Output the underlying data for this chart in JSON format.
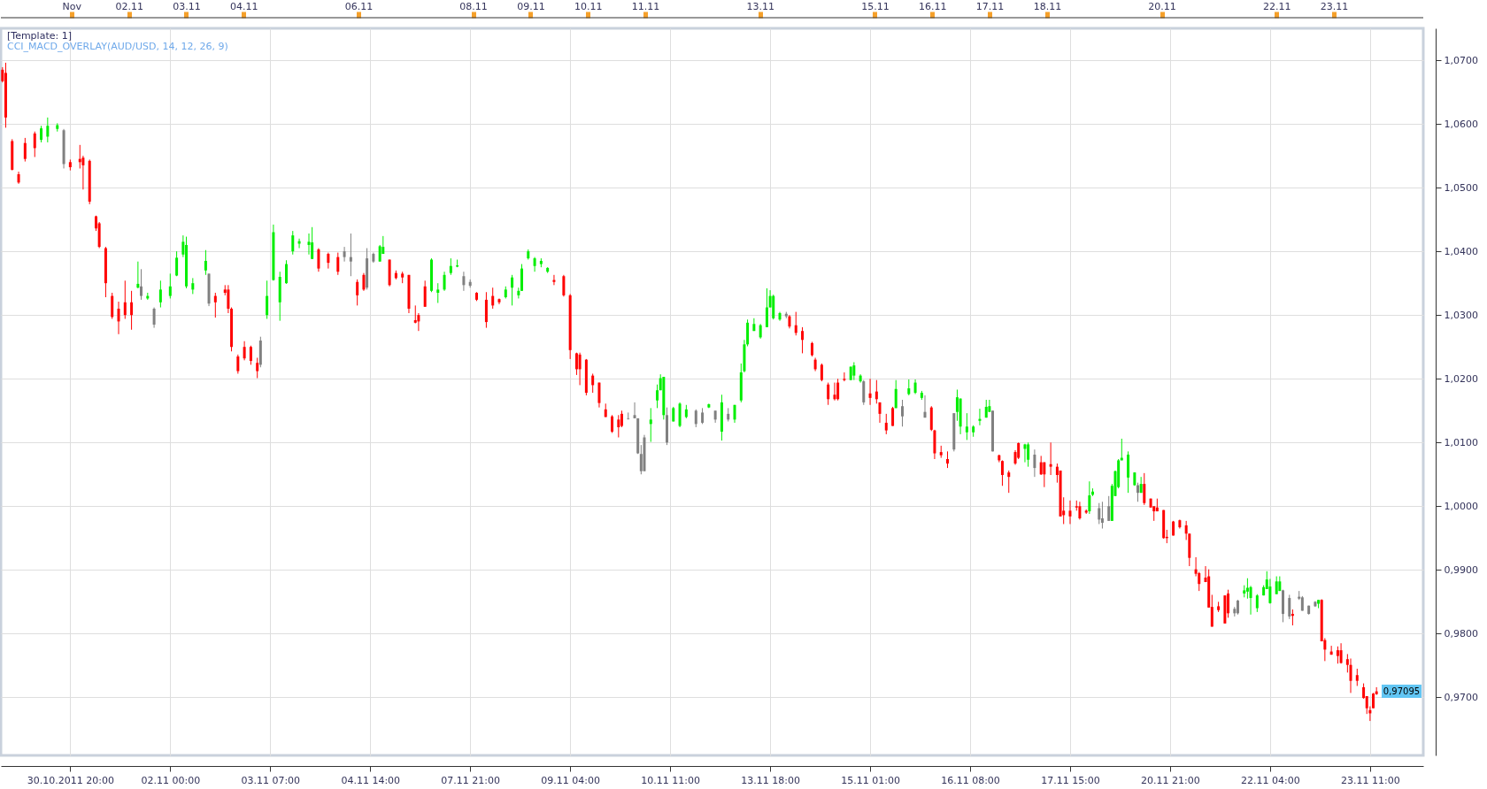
{
  "chart_data": {
    "type": "candlestick",
    "annotations": [
      "[Template: 1]",
      "CCI_MACD_OVERLAY(AUD/USD, 14, 12, 26, 9)",
      "0,97095"
    ],
    "categories": [
      null,
      null,
      null,
      null,
      null,
      null,
      null,
      null,
      null,
      null,
      null,
      null,
      null,
      null,
      null,
      null,
      null,
      null,
      null,
      null,
      null,
      "30.10.2011 20:00",
      null,
      null,
      null,
      null,
      null,
      null,
      null,
      null,
      null,
      null,
      null,
      null,
      null,
      null,
      null,
      null,
      null,
      null,
      null,
      null,
      null,
      null,
      null,
      null,
      null,
      null,
      null,
      null,
      null,
      null,
      "02.11 00:00",
      null,
      null,
      null,
      null,
      null,
      null,
      null,
      null,
      null,
      null,
      null,
      null,
      null,
      null,
      null,
      null,
      null,
      null,
      null,
      null,
      null,
      null,
      null,
      null,
      null,
      null,
      null,
      null,
      null,
      null,
      "03.11 07:00",
      null,
      null,
      null,
      null,
      null,
      null,
      null,
      null,
      null,
      null,
      null,
      null,
      null,
      null,
      null,
      null,
      null,
      null,
      null,
      null,
      null,
      null,
      null,
      null,
      null,
      null,
      null,
      null,
      null,
      null,
      "04.11 14:00",
      null,
      null,
      null,
      null,
      null,
      null,
      null,
      null,
      null,
      null,
      null,
      null,
      null,
      null,
      null,
      null,
      null,
      null,
      null,
      null,
      null,
      null,
      null,
      null,
      null,
      null,
      null,
      null,
      null,
      null,
      "07.11 21:00",
      null,
      null,
      null,
      null,
      null,
      null,
      null,
      null,
      null,
      null,
      null,
      null,
      null,
      null,
      null,
      null,
      null,
      null,
      null,
      null,
      null,
      null,
      null,
      null,
      null,
      null,
      null,
      null,
      null,
      null,
      "09.11 04:00",
      null,
      null,
      null,
      null,
      null,
      null,
      null,
      null,
      null,
      null,
      null,
      null,
      null,
      null,
      null,
      null,
      null,
      null,
      null,
      null,
      null,
      null,
      null,
      null,
      null,
      null,
      null,
      null,
      null,
      null,
      "10.11 11:00",
      null,
      null,
      null,
      null,
      null,
      null,
      null,
      null,
      null,
      null,
      null,
      null,
      null,
      null,
      null,
      null,
      null,
      null,
      null,
      null,
      null,
      null,
      null,
      null,
      null,
      null,
      null,
      null,
      null,
      null,
      "13.11 18:00",
      null,
      null,
      null,
      null,
      null,
      null,
      null,
      null,
      null,
      null,
      null,
      null,
      null,
      null,
      null,
      null,
      null,
      null,
      null,
      null,
      null,
      null,
      null,
      null,
      null,
      null,
      null,
      null,
      null,
      null,
      "15.11 01:00",
      null,
      null,
      null,
      null,
      null,
      null,
      null,
      null,
      null,
      null,
      null,
      null,
      null,
      null,
      null,
      null,
      null,
      null,
      null,
      null,
      null,
      null,
      null,
      null,
      null,
      null,
      null,
      null,
      null,
      null,
      "16.11 08:00",
      null,
      null,
      null,
      null,
      null,
      null,
      null,
      null,
      null,
      null,
      null,
      null,
      null,
      null,
      null,
      null,
      null,
      null,
      null,
      null,
      null,
      null,
      null,
      null,
      null,
      null,
      null,
      null,
      null,
      null,
      "17.11 15:00",
      null,
      null,
      null,
      null,
      null,
      null,
      null,
      null,
      null,
      null,
      null,
      null,
      null,
      null,
      null,
      null,
      null,
      null,
      null,
      null,
      null,
      null,
      null,
      null,
      null,
      null,
      null,
      null,
      null,
      null,
      "20.11 21:00",
      null,
      null,
      null,
      null,
      null,
      null,
      null,
      null,
      null,
      null,
      null,
      null,
      null,
      null,
      null,
      null,
      null,
      null,
      null,
      null,
      null,
      null,
      null,
      null,
      null,
      null,
      null,
      null,
      null,
      null,
      "22.11 04:00",
      null,
      null,
      null,
      null,
      null,
      null,
      null,
      null,
      null,
      null,
      null,
      null,
      null,
      null,
      null,
      null,
      null,
      null,
      null,
      null,
      null,
      null,
      null,
      null,
      null,
      null,
      null,
      null,
      null,
      null,
      "23.11 11:00",
      null,
      null,
      null,
      null,
      null,
      null,
      null,
      null,
      null,
      null,
      null,
      null,
      null,
      null,
      null,
      null
    ],
    "ohlc": [
      [
        1.0685,
        1.0689,
        1.0665,
        1.0667
      ],
      [
        1.068,
        1.0696,
        1.0594,
        1.061
      ],
      null,
      [
        1.0573,
        1.0576,
        1.0527,
        1.0528
      ],
      null,
      [
        1.0521,
        1.0525,
        1.0506,
        1.0508
      ],
      null,
      [
        1.057,
        1.0578,
        1.0541,
        1.0545
      ],
      null,
      null,
      [
        1.0585,
        1.0588,
        1.0548,
        1.0562
      ],
      null,
      [
        1.0575,
        1.0597,
        1.0571,
        1.0593
      ],
      null,
      [
        1.058,
        1.061,
        1.0571,
        1.0597
      ],
      null,
      null,
      [
        1.0592,
        1.0601,
        1.0588,
        1.0598
      ],
      null,
      [
        1.059,
        1.0592,
        1.053,
        1.0537
      ],
      null,
      [
        1.054,
        1.0544,
        1.0527,
        1.0532
      ],
      null,
      null,
      [
        1.0545,
        1.0567,
        1.053,
        1.054
      ],
      [
        1.0547,
        1.055,
        1.0497,
        1.0535
      ],
      null,
      [
        1.0542,
        1.0544,
        1.0474,
        1.0478
      ],
      null,
      [
        1.0455,
        1.0456,
        1.0432,
        1.0436
      ],
      [
        1.0444,
        1.0446,
        1.0405,
        1.0407
      ],
      null,
      [
        1.0405,
        1.0407,
        1.0328,
        1.035
      ],
      null,
      [
        1.033,
        1.0335,
        1.0294,
        1.0297
      ],
      null,
      [
        1.031,
        1.0321,
        1.027,
        1.029
      ],
      null,
      [
        1.032,
        1.0354,
        1.0294,
        1.03
      ],
      null,
      [
        1.032,
        1.0338,
        1.0277,
        1.03
      ],
      null,
      [
        1.0343,
        1.0384,
        1.0342,
        1.0349
      ],
      [
        1.0345,
        1.0372,
        1.0324,
        1.033
      ],
      null,
      [
        1.0326,
        1.0335,
        1.0324,
        1.033
      ],
      null,
      [
        1.031,
        1.0312,
        1.028,
        1.0285
      ],
      null,
      [
        1.032,
        1.0354,
        1.0312,
        1.034
      ],
      null,
      null,
      [
        1.033,
        1.0365,
        1.0326,
        1.0345
      ],
      null,
      [
        1.0362,
        1.04,
        1.0361,
        1.039
      ],
      null,
      [
        1.0395,
        1.0425,
        1.0391,
        1.0415
      ],
      [
        1.0345,
        1.0423,
        1.0342,
        1.041
      ],
      null,
      [
        1.034,
        1.0358,
        1.0333,
        1.035
      ],
      null,
      null,
      null,
      [
        1.037,
        1.0402,
        1.0363,
        1.0385
      ],
      [
        1.0365,
        1.0365,
        1.0314,
        1.0318
      ],
      null,
      [
        1.033,
        1.0335,
        1.0296,
        1.032
      ],
      null,
      null,
      [
        1.034,
        1.0347,
        1.0331,
        1.0335
      ],
      [
        1.034,
        1.0347,
        1.0303,
        1.031
      ],
      [
        1.031,
        1.0312,
        1.0243,
        1.025
      ],
      null,
      [
        1.0235,
        1.0238,
        1.0208,
        1.0212
      ],
      null,
      [
        1.025,
        1.0259,
        1.0229,
        1.0232
      ],
      null,
      [
        1.025,
        1.0252,
        1.0222,
        1.0228
      ],
      null,
      [
        1.0225,
        1.0233,
        1.0201,
        1.0212
      ],
      [
        1.026,
        1.0266,
        1.0218,
        1.0222
      ],
      null,
      [
        1.03,
        1.0354,
        1.0294,
        1.033
      ],
      null,
      [
        1.0355,
        1.0442,
        1.0354,
        1.043
      ],
      null,
      [
        1.032,
        1.0368,
        1.0291,
        1.036
      ],
      null,
      [
        1.035,
        1.0386,
        1.0349,
        1.038
      ],
      null,
      [
        1.04,
        1.0432,
        1.0395,
        1.0425
      ],
      null,
      [
        1.0412,
        1.042,
        1.0405,
        1.0416
      ],
      null,
      null,
      [
        1.041,
        1.0428,
        1.0395,
        1.0415
      ],
      [
        1.0388,
        1.0438,
        1.0388,
        1.0414
      ],
      null,
      [
        1.0403,
        1.0405,
        1.0368,
        1.0373
      ],
      null,
      null,
      [
        1.0396,
        1.0398,
        1.0373,
        1.0382
      ],
      null,
      null,
      [
        1.0391,
        1.0398,
        1.0363,
        1.0368
      ],
      null,
      [
        1.04,
        1.0407,
        1.0384,
        1.0391
      ],
      null,
      [
        1.0391,
        1.0428,
        1.0361,
        1.0384
      ],
      null,
      [
        1.0352,
        1.0356,
        1.0315,
        1.0331
      ],
      null,
      [
        1.0363,
        1.0366,
        1.0338,
        1.034
      ],
      [
        1.0389,
        1.0405,
        1.034,
        1.0343
      ],
      null,
      [
        1.0396,
        1.0398,
        1.0382,
        1.0384
      ],
      null,
      [
        1.0384,
        1.041,
        1.0384,
        1.0408
      ],
      [
        1.0396,
        1.0424,
        1.0396,
        1.0407
      ],
      null,
      [
        1.0387,
        1.0387,
        1.0345,
        1.0347
      ],
      null,
      [
        1.0366,
        1.037,
        1.0356,
        1.0358
      ],
      null,
      [
        1.0365,
        1.0368,
        1.035,
        1.0359
      ],
      null,
      [
        1.0363,
        1.0363,
        1.0303,
        1.031
      ],
      null,
      [
        1.0292,
        1.0315,
        1.0287,
        1.0288
      ],
      [
        1.03,
        1.0303,
        1.0275,
        1.029
      ],
      null,
      [
        1.0345,
        1.0354,
        1.0313,
        1.0313
      ],
      null,
      [
        1.0338,
        1.0389,
        1.0336,
        1.0387
      ],
      null,
      [
        1.0335,
        1.035,
        1.0319,
        1.034
      ],
      null,
      [
        1.034,
        1.0368,
        1.0338,
        1.0363
      ],
      null,
      [
        1.0366,
        1.0389,
        1.0363,
        1.0377
      ],
      null,
      [
        1.0376,
        1.0387,
        1.0375,
        1.0378
      ],
      null,
      [
        1.0361,
        1.0368,
        1.0338,
        1.0347
      ],
      null,
      [
        1.0352,
        1.0356,
        1.0343,
        1.0346
      ],
      null,
      [
        1.0335,
        1.0336,
        1.0322,
        1.0324
      ],
      null,
      null,
      [
        1.0324,
        1.0336,
        1.028,
        1.0289
      ],
      null,
      [
        1.033,
        1.0343,
        1.031,
        1.0315
      ],
      null,
      [
        1.0325,
        1.0326,
        1.0317,
        1.032
      ],
      null,
      [
        1.0328,
        1.0345,
        1.0326,
        1.034
      ],
      null,
      [
        1.0343,
        1.0363,
        1.0315,
        1.0359
      ],
      null,
      [
        1.0331,
        1.0343,
        1.0326,
        1.0338
      ],
      [
        1.0338,
        1.038,
        1.0338,
        1.0373
      ],
      null,
      [
        1.0389,
        1.0403,
        1.0387,
        1.04
      ],
      null,
      [
        1.0377,
        1.0391,
        1.0368,
        1.0389
      ],
      null,
      [
        1.038,
        1.0389,
        1.0375,
        1.0385
      ],
      null,
      [
        1.0368,
        1.0375,
        1.0366,
        1.0374
      ],
      null,
      [
        1.0355,
        1.0363,
        1.0347,
        1.0352
      ],
      null,
      null,
      [
        1.0361,
        1.0363,
        1.0329,
        1.0331
      ],
      null,
      [
        1.0331,
        1.0333,
        1.0231,
        1.0245
      ],
      null,
      [
        1.024,
        1.0241,
        1.0206,
        1.0215
      ],
      [
        1.0238,
        1.0241,
        1.019,
        1.0215
      ],
      null,
      [
        1.023,
        1.0231,
        1.0174,
        1.0178
      ],
      null,
      [
        1.0205,
        1.0208,
        1.0178,
        1.019
      ],
      null,
      [
        1.0194,
        1.0194,
        1.0155,
        1.0162
      ],
      null,
      [
        1.0152,
        1.0161,
        1.014,
        1.014
      ],
      null,
      [
        1.0141,
        1.0143,
        1.0115,
        1.0117
      ],
      null,
      [
        1.0136,
        1.0143,
        1.0108,
        1.0124
      ],
      [
        1.0145,
        1.015,
        1.0124,
        1.0126
      ],
      null,
      [
        1.0138,
        1.0147,
        1.0136,
        1.0137
      ],
      null,
      [
        1.0143,
        1.0163,
        1.0138,
        1.0138
      ],
      [
        1.0138,
        1.0138,
        1.0082,
        1.0083
      ],
      [
        1.0082,
        1.0096,
        1.005,
        1.0055
      ],
      [
        1.0108,
        1.0112,
        1.0055,
        1.0055
      ],
      null,
      [
        1.0129,
        1.0154,
        1.0101,
        1.0136
      ],
      null,
      [
        1.0166,
        1.0191,
        1.0154,
        1.0182
      ],
      [
        1.0182,
        1.0207,
        1.0182,
        1.0201
      ],
      [
        1.0143,
        1.0203,
        1.0136,
        1.0203
      ],
      [
        1.0143,
        1.0155,
        1.0096,
        1.01
      ],
      null,
      [
        1.0133,
        1.0156,
        1.0133,
        1.0154
      ],
      null,
      [
        1.0126,
        1.0163,
        1.0124,
        1.0161
      ],
      null,
      [
        1.014,
        1.0159,
        1.0138,
        1.0152
      ],
      null,
      null,
      [
        1.015,
        1.0152,
        1.0124,
        1.0129
      ],
      null,
      [
        1.0147,
        1.0154,
        1.0129,
        1.0131
      ],
      null,
      [
        1.0155,
        1.0161,
        1.0154,
        1.016
      ],
      null,
      [
        1.015,
        1.015,
        1.0131,
        1.0136
      ],
      null,
      [
        1.0117,
        1.0175,
        1.0103,
        1.0163
      ],
      null,
      [
        1.0145,
        1.0154,
        1.0133,
        1.0136
      ],
      null,
      [
        1.0136,
        1.0159,
        1.0131,
        1.0159
      ],
      null,
      [
        1.0166,
        1.0224,
        1.0163,
        1.021
      ],
      [
        1.0212,
        1.0261,
        1.021,
        1.0254
      ],
      [
        1.0254,
        1.0293,
        1.0251,
        1.0288
      ],
      null,
      [
        1.0275,
        1.0295,
        1.0275,
        1.0286
      ],
      null,
      [
        1.0265,
        1.0286,
        1.0263,
        1.0284
      ],
      null,
      [
        1.0281,
        1.0342,
        1.0281,
        1.0312
      ],
      [
        1.0312,
        1.0339,
        1.0312,
        1.033
      ],
      [
        1.0295,
        1.0332,
        1.0293,
        1.033
      ],
      null,
      [
        1.0293,
        1.0305,
        1.0291,
        1.0303
      ],
      null,
      [
        1.0302,
        1.0305,
        1.0295,
        1.0298
      ],
      [
        1.0298,
        1.03,
        1.0279,
        1.0282
      ],
      null,
      [
        1.0284,
        1.0305,
        1.0268,
        1.0272
      ],
      null,
      [
        1.0275,
        1.0281,
        1.024,
        1.0261
      ],
      null,
      null,
      [
        1.0256,
        1.0258,
        1.0235,
        1.0237
      ],
      [
        1.023,
        1.0233,
        1.0212,
        1.0215
      ],
      null,
      [
        1.0222,
        1.0224,
        1.0196,
        1.0198
      ],
      null,
      [
        1.0191,
        1.0194,
        1.0159,
        1.0168
      ],
      null,
      [
        1.0175,
        1.0194,
        1.0166,
        1.0168
      ],
      [
        1.0194,
        1.02,
        1.0166,
        1.0168
      ],
      null,
      [
        1.02,
        1.021,
        1.0196,
        1.0198
      ],
      null,
      [
        1.0198,
        1.0219,
        1.0198,
        1.0219
      ],
      [
        1.0205,
        1.0226,
        1.0198,
        1.0221
      ],
      null,
      [
        1.0196,
        1.0207,
        1.0194,
        1.0205
      ],
      [
        1.0196,
        1.0198,
        1.0159,
        1.0163
      ],
      null,
      [
        1.0177,
        1.02,
        1.0159,
        1.017
      ],
      null,
      [
        1.018,
        1.0198,
        1.0161,
        1.0168
      ],
      [
        1.0163,
        1.0163,
        1.0131,
        1.0145
      ],
      null,
      [
        1.0131,
        1.0145,
        1.0113,
        1.0119
      ],
      null,
      [
        1.0154,
        1.0156,
        1.0126,
        1.0126
      ],
      [
        1.0154,
        1.0198,
        1.0154,
        1.0184
      ],
      null,
      [
        1.0157,
        1.0167,
        1.0125,
        1.0141
      ],
      null,
      [
        1.0176,
        1.0199,
        1.0174,
        1.0185
      ],
      null,
      [
        1.0178,
        1.0199,
        1.0176,
        1.0194
      ],
      null,
      [
        1.017,
        1.0181,
        1.0167,
        1.0178
      ],
      [
        1.0148,
        1.0174,
        1.0139,
        1.0139
      ],
      null,
      [
        1.0155,
        1.0157,
        1.0118,
        1.012
      ],
      [
        1.0119,
        1.012,
        1.0074,
        1.0083
      ],
      null,
      [
        1.0085,
        1.0095,
        1.0076,
        1.008
      ],
      null,
      [
        1.0074,
        1.0086,
        1.006,
        1.0067
      ],
      null,
      [
        1.0146,
        1.0146,
        1.0086,
        1.0089
      ],
      [
        1.0148,
        1.0183,
        1.0134,
        1.0171
      ],
      [
        1.0125,
        1.0169,
        1.0113,
        1.0169
      ],
      null,
      [
        1.0116,
        1.0146,
        1.0104,
        1.0125
      ],
      null,
      [
        1.0116,
        1.0127,
        1.0109,
        1.0125
      ],
      null,
      [
        1.0134,
        1.0153,
        1.0127,
        1.0137
      ],
      null,
      [
        1.0139,
        1.0167,
        1.0139,
        1.0156
      ],
      [
        1.0148,
        1.0167,
        1.0148,
        1.0157
      ],
      [
        1.015,
        1.015,
        1.0086,
        1.0086
      ],
      null,
      [
        1.008,
        1.0081,
        1.0069,
        1.0072
      ],
      [
        1.0071,
        1.0072,
        1.0032,
        1.0049
      ],
      null,
      [
        1.0053,
        1.0056,
        1.0021,
        1.0046
      ],
      null,
      [
        1.0085,
        1.0088,
        1.0065,
        1.0067
      ],
      [
        1.0099,
        1.01,
        1.0074,
        1.0076
      ],
      null,
      [
        1.009,
        1.0098,
        1.0069,
        1.0097
      ],
      [
        1.0073,
        1.01,
        1.0062,
        1.0097
      ],
      null,
      [
        1.0081,
        1.0089,
        1.0046,
        1.006
      ],
      null,
      [
        1.0069,
        1.0079,
        1.0049,
        1.005
      ],
      [
        1.0069,
        1.0069,
        1.003,
        1.005
      ],
      null,
      [
        1.0066,
        1.01,
        1.0049,
        1.0062
      ],
      null,
      [
        1.0062,
        1.0067,
        1.0037,
        1.0049
      ],
      [
        1.0056,
        1.0056,
        0.9984,
        0.9984
      ],
      [
        0.9993,
        1.0014,
        0.9972,
        0.9986
      ],
      null,
      [
        0.9993,
        1.0009,
        0.9972,
        0.9984
      ],
      null,
      [
        1.0,
        1.0009,
        0.9993,
        0.9998
      ],
      [
        1.0,
        1.0007,
        0.9979,
        0.9981
      ],
      null,
      [
        0.9993,
        0.9995,
        0.9988,
        0.999
      ],
      [
        0.9992,
        1.0039,
        0.9988,
        1.0017
      ],
      [
        1.0018,
        1.0028,
        1.0016,
        1.0023
      ],
      null,
      [
        0.9997,
        1.0005,
        0.9972,
        0.9979
      ],
      [
        0.9981,
        1.0007,
        0.9965,
        0.9974
      ],
      null,
      [
        1.0,
        1.0016,
        0.9977,
        0.9977
      ],
      [
        0.9977,
        1.0035,
        0.9977,
        1.0032
      ],
      [
        1.0016,
        1.0056,
        1.0016,
        1.0055
      ],
      [
        1.003,
        1.0074,
        1.0028,
        1.0072
      ],
      [
        1.0072,
        1.0106,
        1.0072,
        1.0076
      ],
      null,
      [
        1.0045,
        1.0086,
        1.0021,
        1.0081
      ],
      null,
      [
        1.0033,
        1.0053,
        1.0032,
        1.0053
      ],
      [
        1.0033,
        1.0037,
        1.0007,
        1.0021
      ],
      [
        1.0021,
        1.0046,
        1.0021,
        1.0035
      ],
      [
        1.0035,
        1.0052,
        1.0002,
        1.0005
      ],
      null,
      [
        1.0012,
        1.0012,
        0.9998,
        0.9998
      ],
      [
        1.0,
        1.0,
        0.9977,
        0.9992
      ],
      [
        0.9998,
        1.0012,
        0.9992,
        0.9992
      ],
      null,
      [
        0.9994,
        0.9994,
        0.9949,
        0.995
      ],
      [
        0.9952,
        0.9963,
        0.9942,
        0.995
      ],
      null,
      [
        0.9976,
        0.9977,
        0.9954,
        0.9954
      ],
      null,
      [
        0.9978,
        0.9979,
        0.9965,
        0.9967
      ],
      null,
      [
        0.997,
        0.9977,
        0.9947,
        0.9957
      ],
      [
        0.9957,
        0.9957,
        0.9906,
        0.9919
      ],
      null,
      [
        0.9901,
        0.992,
        0.989,
        0.9894
      ],
      [
        0.9895,
        0.9897,
        0.9867,
        0.9878
      ],
      null,
      [
        0.9888,
        0.9906,
        0.9881,
        0.9881
      ],
      [
        0.989,
        0.9901,
        0.9841,
        0.9841
      ],
      [
        0.9842,
        0.9861,
        0.9811,
        0.9811
      ],
      null,
      [
        0.9843,
        0.985,
        0.9834,
        0.9837
      ],
      null,
      [
        0.986,
        0.986,
        0.9816,
        0.9816
      ],
      [
        0.9863,
        0.9869,
        0.9825,
        0.9832
      ],
      null,
      [
        0.9839,
        0.9842,
        0.9827,
        0.9832
      ],
      [
        0.9852,
        0.9853,
        0.983,
        0.9832
      ],
      null,
      [
        0.9863,
        0.9876,
        0.9857,
        0.9868
      ],
      [
        0.9866,
        0.9887,
        0.9855,
        0.9872
      ],
      [
        0.9856,
        0.9875,
        0.983,
        0.9873
      ],
      null,
      [
        0.984,
        0.9862,
        0.9834,
        0.986
      ],
      null,
      [
        0.986,
        0.9876,
        0.986,
        0.9873
      ],
      [
        0.987,
        0.9898,
        0.987,
        0.9885
      ],
      [
        0.9848,
        0.9886,
        0.9847,
        0.9874
      ],
      null,
      [
        0.9862,
        0.989,
        0.9862,
        0.9882
      ],
      [
        0.9867,
        0.989,
        0.9867,
        0.9882
      ],
      [
        0.9868,
        0.9869,
        0.9818,
        0.9831
      ],
      null,
      [
        0.9856,
        0.9861,
        0.9823,
        0.9827
      ],
      [
        0.9831,
        0.9838,
        0.9813,
        0.9828
      ],
      null,
      [
        0.9858,
        0.9867,
        0.9853,
        0.9855
      ],
      [
        0.9857,
        0.9859,
        0.9836,
        0.9836
      ],
      null,
      [
        0.9844,
        0.9844,
        0.983,
        0.9831
      ],
      null,
      [
        0.985,
        0.9851,
        0.9842,
        0.9843
      ],
      [
        0.9847,
        0.9853,
        0.984,
        0.9853
      ],
      [
        0.9853,
        0.9854,
        0.9788,
        0.9788
      ],
      [
        0.979,
        0.9793,
        0.9757,
        0.9775
      ],
      null,
      [
        0.9772,
        0.9781,
        0.9767,
        0.9767
      ],
      null,
      [
        0.9774,
        0.978,
        0.9753,
        0.9765
      ],
      [
        0.9774,
        0.9785,
        0.9753,
        0.9754
      ],
      null,
      [
        0.976,
        0.9768,
        0.9739,
        0.9751
      ],
      [
        0.9751,
        0.9761,
        0.9707,
        0.9726
      ],
      null,
      [
        0.9735,
        0.9745,
        0.9718,
        0.9726
      ],
      null,
      [
        0.9716,
        0.9722,
        0.9698,
        0.9699
      ],
      [
        0.9702,
        0.9702,
        0.9674,
        0.9683
      ],
      [
        0.968,
        0.9686,
        0.9663,
        0.9675
      ],
      [
        0.9706,
        0.9707,
        0.9683,
        0.9683
      ],
      [
        0.9705,
        0.9716,
        0.9704,
        0.97095
      ],
      null,
      null,
      null,
      null,
      null,
      null,
      null,
      null,
      null,
      null,
      null,
      null,
      null,
      null
    ],
    "colors": [
      "#ff0000",
      "#ff0000",
      null,
      "#ff0000",
      null,
      "#ff0000",
      null,
      "#ff0000",
      null,
      null,
      "#ff0000",
      null,
      "#00ee00",
      null,
      "#00ee00",
      null,
      null,
      "#00ee00",
      null,
      "#808080",
      null,
      "#ff0000",
      null,
      null,
      "#ff0000",
      "#ff0000",
      null,
      "#ff0000",
      null,
      "#ff0000",
      "#ff0000",
      null,
      "#ff0000",
      null,
      "#ff0000",
      null,
      "#ff0000",
      null,
      "#ff0000",
      null,
      "#ff0000",
      null,
      "#00ee00",
      "#808080",
      null,
      "#00ee00",
      null,
      "#808080",
      null,
      "#00ee00",
      null,
      null,
      "#00ee00",
      null,
      "#00ee00",
      null,
      "#00ee00",
      "#00ee00",
      null,
      "#00ee00",
      null,
      null,
      null,
      "#00ee00",
      "#808080",
      null,
      "#ff0000",
      null,
      null,
      "#ff0000",
      "#ff0000",
      "#ff0000",
      null,
      "#ff0000",
      null,
      "#ff0000",
      null,
      "#ff0000",
      null,
      "#ff0000",
      "#808080",
      null,
      "#00ee00",
      null,
      "#00ee00",
      null,
      "#00ee00",
      null,
      "#00ee00",
      null,
      "#00ee00",
      null,
      "#00ee00",
      null,
      null,
      "#00ee00",
      "#00ee00",
      null,
      "#ff0000",
      null,
      null,
      "#ff0000",
      null,
      null,
      "#ff0000",
      null,
      "#808080",
      null,
      "#808080",
      null,
      "#ff0000",
      null,
      "#ff0000",
      "#808080",
      null,
      "#808080",
      null,
      "#00ee00",
      "#00ee00",
      null,
      "#ff0000",
      null,
      "#ff0000",
      null,
      "#ff0000",
      null,
      "#ff0000",
      null,
      "#ff0000",
      "#ff0000",
      null,
      "#ff0000",
      null,
      "#00ee00",
      null,
      "#00ee00",
      null,
      "#00ee00",
      null,
      "#00ee00",
      null,
      "#00ee00",
      null,
      "#808080",
      null,
      "#808080",
      null,
      "#ff0000",
      null,
      null,
      "#ff0000",
      null,
      "#ff0000",
      null,
      "#ff0000",
      null,
      "#00ee00",
      null,
      "#00ee00",
      null,
      "#00ee00",
      "#00ee00",
      null,
      "#00ee00",
      null,
      "#00ee00",
      null,
      "#00ee00",
      null,
      "#00ee00",
      null,
      "#ff0000",
      null,
      null,
      "#ff0000",
      null,
      "#ff0000",
      null,
      "#ff0000",
      "#ff0000",
      null,
      "#ff0000",
      null,
      "#ff0000",
      null,
      "#ff0000",
      null,
      "#ff0000",
      null,
      "#ff0000",
      null,
      "#ff0000",
      "#ff0000",
      null,
      "#808080",
      null,
      "#808080",
      "#808080",
      "#808080",
      "#808080",
      null,
      "#00ee00",
      null,
      "#00ee00",
      "#00ee00",
      "#00ee00",
      "#808080",
      null,
      "#00ee00",
      null,
      "#00ee00",
      null,
      "#00ee00",
      null,
      null,
      "#808080",
      null,
      "#808080",
      null,
      "#00ee00",
      null,
      "#808080",
      null,
      "#00ee00",
      null,
      "#808080",
      null,
      "#00ee00",
      null,
      "#00ee00",
      "#00ee00",
      "#00ee00",
      null,
      "#00ee00",
      null,
      "#00ee00",
      null,
      "#00ee00",
      "#00ee00",
      "#00ee00",
      null,
      "#00ee00",
      null,
      "#808080",
      "#ff0000",
      null,
      "#ff0000",
      null,
      "#ff0000",
      null,
      null,
      "#ff0000",
      "#ff0000",
      null,
      "#ff0000",
      null,
      "#ff0000",
      null,
      "#ff0000",
      "#ff0000",
      null,
      "#ff0000",
      null,
      "#00ee00",
      "#00ee00",
      null,
      "#00ee00",
      "#808080",
      null,
      "#ff0000",
      null,
      "#ff0000",
      "#ff0000",
      null,
      "#ff0000",
      null,
      "#ff0000",
      "#00ee00",
      null,
      "#808080",
      null,
      "#00ee00",
      null,
      "#00ee00",
      null,
      "#00ee00",
      "#808080",
      null,
      "#ff0000",
      "#ff0000",
      null,
      "#ff0000",
      null,
      "#ff0000",
      null,
      "#808080",
      "#00ee00",
      "#00ee00",
      null,
      "#00ee00",
      null,
      "#00ee00",
      null,
      "#00ee00",
      null,
      "#00ee00",
      "#00ee00",
      "#808080",
      null,
      "#ff0000",
      "#ff0000",
      null,
      "#ff0000",
      null,
      "#ff0000",
      "#ff0000",
      null,
      "#00ee00",
      "#00ee00",
      null,
      "#808080",
      null,
      "#ff0000",
      "#ff0000",
      null,
      "#ff0000",
      null,
      "#ff0000",
      "#ff0000",
      "#ff0000",
      null,
      "#ff0000",
      null,
      "#ff0000",
      "#ff0000",
      null,
      "#ff0000",
      "#00ee00",
      "#00ee00",
      null,
      "#808080",
      "#808080",
      null,
      "#808080",
      "#00ee00",
      "#00ee00",
      "#00ee00",
      "#00ee00",
      null,
      "#00ee00",
      null,
      "#00ee00",
      "#808080",
      "#00ee00",
      "#ff0000",
      null,
      "#ff0000",
      "#ff0000",
      "#ff0000",
      null,
      "#ff0000",
      "#ff0000",
      null,
      "#ff0000",
      null,
      "#ff0000",
      null,
      "#ff0000",
      "#ff0000",
      null,
      "#ff0000",
      "#ff0000",
      null,
      "#ff0000",
      "#ff0000",
      "#ff0000",
      null,
      "#ff0000",
      null,
      "#ff0000",
      "#ff0000",
      null,
      "#808080",
      "#808080",
      null,
      "#00ee00",
      "#00ee00",
      "#00ee00",
      null,
      "#00ee00",
      null,
      "#00ee00",
      "#00ee00",
      "#00ee00",
      null,
      "#00ee00",
      "#00ee00",
      "#808080",
      null,
      "#808080",
      "#ff0000",
      null,
      "#808080",
      "#808080",
      null,
      "#808080",
      null,
      "#808080",
      "#00ee00",
      "#ff0000",
      "#ff0000",
      null,
      "#ff0000",
      null,
      "#ff0000",
      "#ff0000",
      null,
      "#ff0000",
      "#ff0000",
      null,
      "#ff0000",
      null,
      "#ff0000",
      "#ff0000",
      "#ff0000",
      "#ff0000",
      "#ff0000",
      null,
      null,
      null,
      null,
      null,
      null,
      null,
      null,
      null,
      null,
      null,
      null,
      null,
      null
    ],
    "x2lim": [
      "2011-10-30T18:27",
      "2011-11-24T13:23"
    ],
    "x2ticks": [
      {
        "value": "2011-11-01",
        "label": "Nov"
      },
      {
        "value": "2011-11-02",
        "label": "02.11"
      },
      {
        "value": "2011-11-03",
        "label": "03.11"
      },
      {
        "value": "2011-11-04",
        "label": "04.11"
      },
      {
        "value": "2011-11-06",
        "label": "06.11"
      },
      {
        "value": "2011-11-08",
        "label": "08.11"
      },
      {
        "value": "2011-11-09",
        "label": "09.11"
      },
      {
        "value": "2011-11-10",
        "label": "10.11"
      },
      {
        "value": "2011-11-11",
        "label": "11.11"
      },
      {
        "value": "2011-11-13",
        "label": "13.11"
      },
      {
        "value": "2011-11-15",
        "label": "15.11"
      },
      {
        "value": "2011-11-16",
        "label": "16.11"
      },
      {
        "value": "2011-11-17",
        "label": "17.11"
      },
      {
        "value": "2011-11-18",
        "label": "18.11"
      },
      {
        "value": "2011-11-20",
        "label": "20.11"
      },
      {
        "value": "2011-11-22",
        "label": "22.11"
      },
      {
        "value": "2011-11-23",
        "label": "23.11"
      }
    ],
    "ylim": [
      0.9609,
      1.075
    ],
    "yticks": [
      {
        "value": 0.97,
        "label": "0,9700"
      },
      {
        "value": 0.98,
        "label": "0,9800"
      },
      {
        "value": 0.99,
        "label": "0,9900"
      },
      {
        "value": 1.0,
        "label": "1,0000"
      },
      {
        "value": 1.01,
        "label": "1,0100"
      },
      {
        "value": 1.02,
        "label": "1,0200"
      },
      {
        "value": 1.03,
        "label": "1,0300"
      },
      {
        "value": 1.04,
        "label": "1,0400"
      },
      {
        "value": 1.05,
        "label": "1,0500"
      },
      {
        "value": 1.06,
        "label": "1,0600"
      },
      {
        "value": 1.07,
        "label": "1,0700"
      }
    ],
    "grid": true
  }
}
